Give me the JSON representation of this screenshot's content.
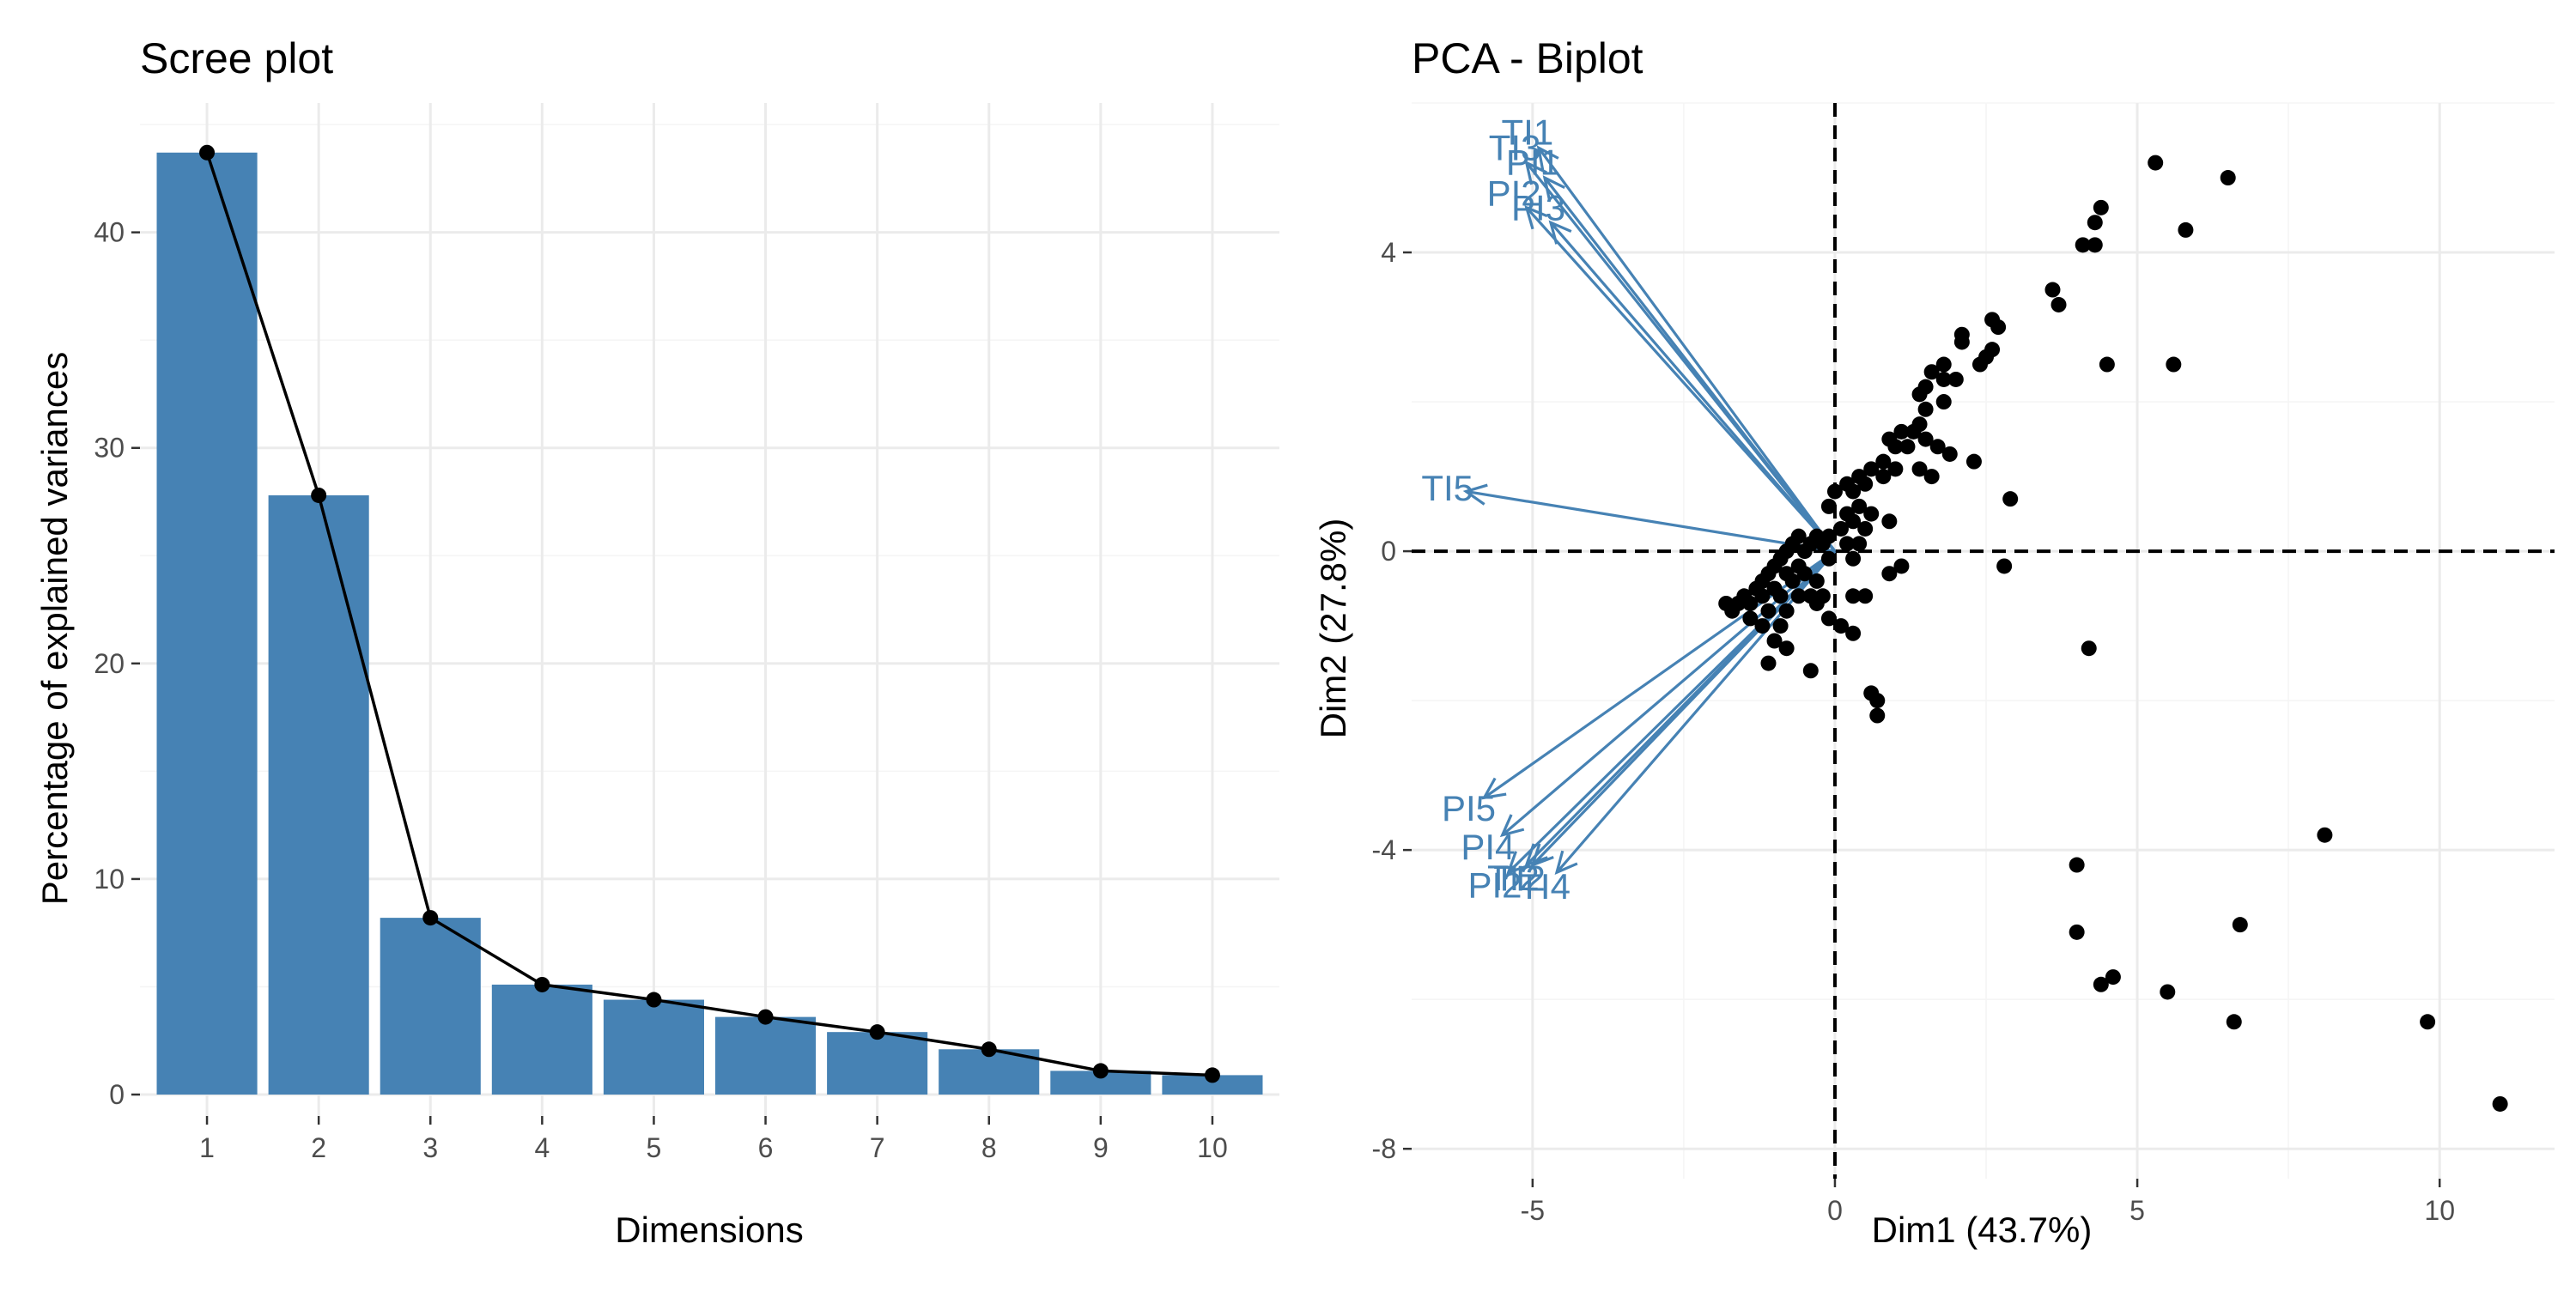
{
  "chart_data": [
    {
      "type": "bar",
      "title": "Scree plot",
      "xlabel": "Dimensions",
      "ylabel": "Percentage of explained variances",
      "categories": [
        "1",
        "2",
        "3",
        "4",
        "5",
        "6",
        "7",
        "8",
        "9",
        "10"
      ],
      "values": [
        43.7,
        27.8,
        8.2,
        5.1,
        4.4,
        3.6,
        2.9,
        2.1,
        1.1,
        0.9
      ],
      "ylim": [
        0,
        46
      ],
      "yticks": [
        0,
        10,
        20,
        30,
        40
      ],
      "line_overlay": true,
      "bar_color": "#4682B4",
      "line_color": "#000000",
      "grid": true
    },
    {
      "type": "scatter",
      "title": "PCA - Biplot",
      "xlabel": "Dim1 (43.7%)",
      "ylabel": "Dim2 (27.8%)",
      "xlim": [
        -7.0,
        11.9
      ],
      "ylim": [
        -8.4,
        6.0
      ],
      "xticks": [
        -5,
        0,
        5,
        10
      ],
      "yticks": [
        -8,
        -4,
        0,
        4
      ],
      "grid": true,
      "reference_lines": {
        "x": 0,
        "y": 0,
        "style": "dashed"
      },
      "point_color": "#000000",
      "arrow_color": "#4682B4",
      "arrows": [
        {
          "label": "TI1",
          "x": -4.9,
          "y": 5.4
        },
        {
          "label": "TI3",
          "x": -5.1,
          "y": 5.2
        },
        {
          "label": "PI1",
          "x": -4.8,
          "y": 5.0
        },
        {
          "label": "PI3",
          "x": -4.7,
          "y": 4.4
        },
        {
          "label": "PI2",
          "x": -5.1,
          "y": 4.6
        },
        {
          "label": "TI5",
          "x": -6.1,
          "y": 0.8
        },
        {
          "label": "PI5",
          "x": -5.8,
          "y": -3.3
        },
        {
          "label": "PI4",
          "x": -5.5,
          "y": -3.8
        },
        {
          "label": "PI2",
          "x": -5.4,
          "y": -4.3
        },
        {
          "label": "TI2",
          "x": -5.1,
          "y": -4.2
        },
        {
          "label": "TI4",
          "x": -4.6,
          "y": -4.3
        },
        {
          "label": "TI2",
          "x": -5.0,
          "y": -4.2
        }
      ],
      "points": [
        [
          5.3,
          5.2
        ],
        [
          6.5,
          5.0
        ],
        [
          4.4,
          4.6
        ],
        [
          4.3,
          4.4
        ],
        [
          4.3,
          4.1
        ],
        [
          4.1,
          4.1
        ],
        [
          5.8,
          4.3
        ],
        [
          3.6,
          3.5
        ],
        [
          3.7,
          3.3
        ],
        [
          2.6,
          3.1
        ],
        [
          2.7,
          3.0
        ],
        [
          2.1,
          2.9
        ],
        [
          2.1,
          2.8
        ],
        [
          2.6,
          2.7
        ],
        [
          4.5,
          2.5
        ],
        [
          5.6,
          2.5
        ],
        [
          1.8,
          2.5
        ],
        [
          1.6,
          2.4
        ],
        [
          1.8,
          2.3
        ],
        [
          1.5,
          2.2
        ],
        [
          2.0,
          2.3
        ],
        [
          2.4,
          2.5
        ],
        [
          2.5,
          2.6
        ],
        [
          1.4,
          2.1
        ],
        [
          1.8,
          2.0
        ],
        [
          1.5,
          1.9
        ],
        [
          1.4,
          1.7
        ],
        [
          1.1,
          1.6
        ],
        [
          1.3,
          1.6
        ],
        [
          1.5,
          1.5
        ],
        [
          0.9,
          1.5
        ],
        [
          1.0,
          1.4
        ],
        [
          1.2,
          1.4
        ],
        [
          1.7,
          1.4
        ],
        [
          1.9,
          1.3
        ],
        [
          2.3,
          1.2
        ],
        [
          1.4,
          1.1
        ],
        [
          1.6,
          1.0
        ],
        [
          0.8,
          1.2
        ],
        [
          1.0,
          1.1
        ],
        [
          0.6,
          1.1
        ],
        [
          0.8,
          1.0
        ],
        [
          0.4,
          1.0
        ],
        [
          0.5,
          0.9
        ],
        [
          0.3,
          0.8
        ],
        [
          0.2,
          0.9
        ],
        [
          0.0,
          0.8
        ],
        [
          -0.1,
          0.6
        ],
        [
          0.2,
          0.5
        ],
        [
          0.4,
          0.6
        ],
        [
          0.6,
          0.5
        ],
        [
          0.9,
          0.4
        ],
        [
          0.5,
          0.3
        ],
        [
          0.3,
          0.4
        ],
        [
          0.1,
          0.3
        ],
        [
          -0.1,
          0.2
        ],
        [
          0.2,
          0.1
        ],
        [
          0.4,
          0.1
        ],
        [
          0.3,
          -0.1
        ],
        [
          -0.2,
          0.1
        ],
        [
          -0.3,
          0.2
        ],
        [
          -0.1,
          -0.1
        ],
        [
          -0.4,
          0.1
        ],
        [
          -0.5,
          0.0
        ],
        [
          -0.6,
          0.2
        ],
        [
          -0.7,
          0.1
        ],
        [
          -0.8,
          0.0
        ],
        [
          -0.9,
          -0.1
        ],
        [
          -0.6,
          -0.2
        ],
        [
          -0.8,
          -0.3
        ],
        [
          -1.0,
          -0.2
        ],
        [
          -1.1,
          -0.3
        ],
        [
          -1.2,
          -0.4
        ],
        [
          -1.3,
          -0.5
        ],
        [
          -1.0,
          -0.5
        ],
        [
          -0.7,
          -0.4
        ],
        [
          -0.5,
          -0.3
        ],
        [
          -0.9,
          -0.6
        ],
        [
          -1.2,
          -0.6
        ],
        [
          -1.4,
          -0.7
        ],
        [
          -1.5,
          -0.6
        ],
        [
          -1.6,
          -0.7
        ],
        [
          -1.7,
          -0.8
        ],
        [
          -1.8,
          -0.7
        ],
        [
          -1.4,
          -0.9
        ],
        [
          -1.1,
          -0.8
        ],
        [
          -0.8,
          -0.8
        ],
        [
          -0.6,
          -0.6
        ],
        [
          -0.3,
          -0.4
        ],
        [
          -0.2,
          -0.6
        ],
        [
          -0.4,
          -0.6
        ],
        [
          -0.9,
          -1.0
        ],
        [
          -0.8,
          -1.3
        ],
        [
          -1.0,
          -1.2
        ],
        [
          -1.2,
          -1.0
        ],
        [
          -1.1,
          -1.5
        ],
        [
          -0.4,
          -1.6
        ],
        [
          0.3,
          -0.6
        ],
        [
          0.5,
          -0.6
        ],
        [
          -0.3,
          -0.7
        ],
        [
          -0.1,
          -0.9
        ],
        [
          0.1,
          -1.0
        ],
        [
          0.3,
          -1.1
        ],
        [
          0.6,
          -1.9
        ],
        [
          0.7,
          -2.0
        ],
        [
          0.7,
          -2.2
        ],
        [
          2.9,
          0.7
        ],
        [
          2.8,
          -0.2
        ],
        [
          4.2,
          -1.3
        ],
        [
          1.1,
          -0.2
        ],
        [
          0.9,
          -0.3
        ],
        [
          4.0,
          -4.2
        ],
        [
          4.0,
          -5.1
        ],
        [
          4.4,
          -5.8
        ],
        [
          4.6,
          -5.7
        ],
        [
          5.5,
          -5.9
        ],
        [
          6.6,
          -6.3
        ],
        [
          6.7,
          -5.0
        ],
        [
          8.1,
          -3.8
        ],
        [
          9.8,
          -6.3
        ],
        [
          11.0,
          -7.4
        ]
      ]
    }
  ]
}
